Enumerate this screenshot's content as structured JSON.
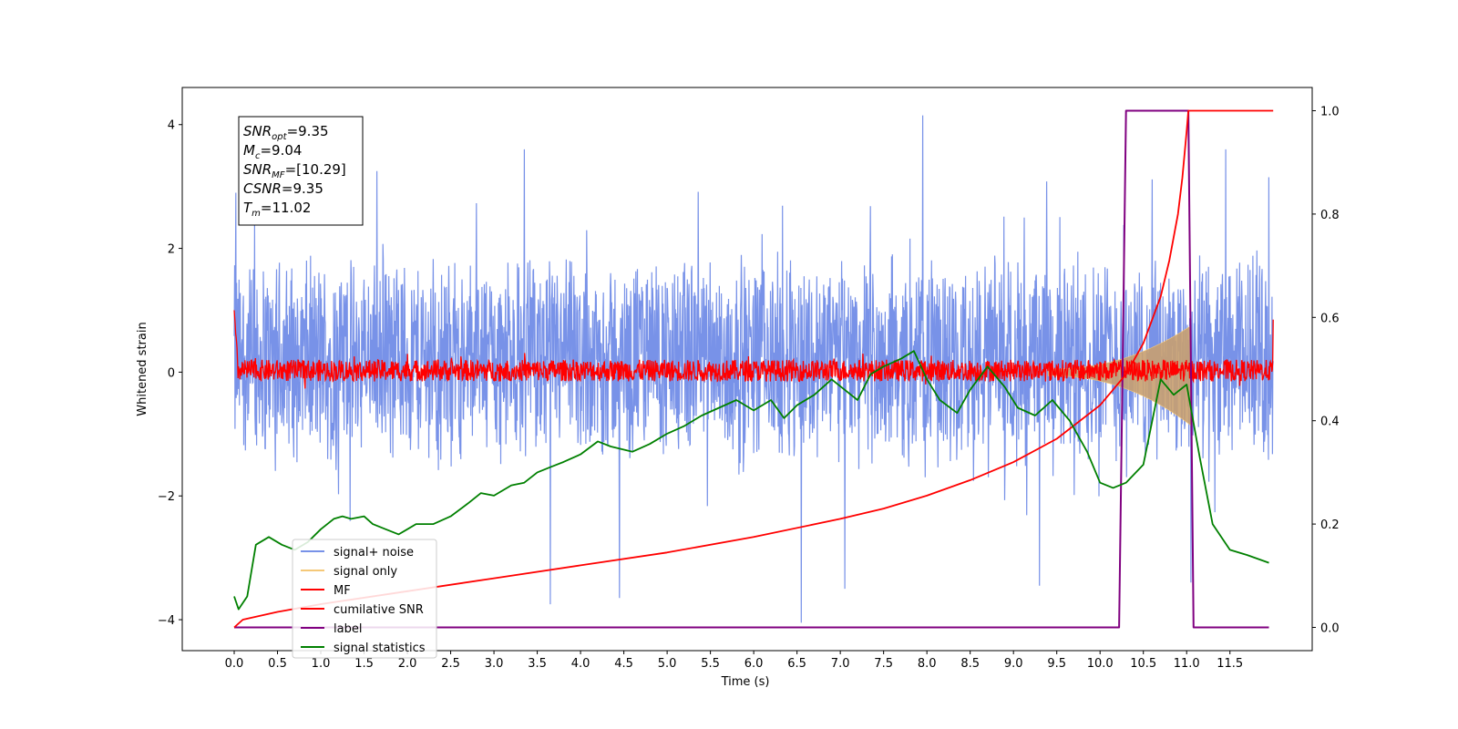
{
  "chart_data": {
    "type": "line",
    "title": "",
    "xlabel": "Time (s)",
    "ylabel": "Whitened strain",
    "xlim": [
      -0.6,
      12.45
    ],
    "ylim": [
      -4.5,
      4.6
    ],
    "y2lim": [
      -0.045,
      1.045
    ],
    "x_ticks": [
      "0.0",
      "0.5",
      "1.0",
      "1.5",
      "2.0",
      "2.5",
      "3.0",
      "3.5",
      "4.0",
      "4.5",
      "5.0",
      "5.5",
      "6.0",
      "6.5",
      "7.0",
      "7.5",
      "8.0",
      "8.5",
      "9.0",
      "9.5",
      "10.0",
      "10.5",
      "11.0",
      "11.5"
    ],
    "y_ticks": [
      "−4",
      "−2",
      "0",
      "2",
      "4"
    ],
    "y2_ticks": [
      "0.0",
      "0.2",
      "0.4",
      "0.6",
      "0.8",
      "1.0"
    ],
    "grid": false,
    "legend_position": "lower-left",
    "annotation": {
      "lines": [
        {
          "sym": "SNR",
          "sub": "opt",
          "rest": "=9.35"
        },
        {
          "sym": "M",
          "sub": "c",
          "rest": "=9.04"
        },
        {
          "sym": "SNR",
          "sub": "MF",
          "rest": "=[10.29]"
        },
        {
          "sym": "CSNR",
          "sub": "",
          "rest": "=9.35"
        },
        {
          "sym": "T",
          "sub": "m",
          "rest": "=11.02"
        }
      ]
    },
    "series": [
      {
        "name": "signal+ noise",
        "color": "#7892e8",
        "axis": "left",
        "kind": "noise",
        "x_range": [
          0.0,
          12.0
        ],
        "typical_range": [
          -1.6,
          2.0
        ],
        "extremes": [
          {
            "x": 0.02,
            "y": 2.9
          },
          {
            "x": 1.65,
            "y": 3.25
          },
          {
            "x": 3.35,
            "y": 3.6
          },
          {
            "x": 7.95,
            "y": 4.15
          },
          {
            "x": 11.45,
            "y": 3.6
          },
          {
            "x": 11.95,
            "y": 3.15
          },
          {
            "x": 3.65,
            "y": -3.75
          },
          {
            "x": 4.45,
            "y": -3.65
          },
          {
            "x": 6.55,
            "y": -4.05
          },
          {
            "x": 7.05,
            "y": -3.5
          },
          {
            "x": 9.3,
            "y": -3.45
          },
          {
            "x": 11.05,
            "y": -3.4
          }
        ]
      },
      {
        "name": "signal only",
        "color": "#f5c878",
        "axis": "left",
        "kind": "chirp",
        "x_range": [
          9.4,
          11.05
        ],
        "amplitude_start": 0.05,
        "amplitude_end": 0.75
      },
      {
        "name": "MF",
        "color": "#ff0000",
        "axis": "left",
        "kind": "noise",
        "x_range": [
          0.0,
          12.0
        ],
        "typical_range": [
          -0.15,
          0.2
        ],
        "start_value": 1.0,
        "end_value": 0.85
      },
      {
        "name": "cumilative SNR",
        "color": "#ff0000",
        "axis": "right",
        "x": [
          0.0,
          0.1,
          0.5,
          1.0,
          2.0,
          3.0,
          4.0,
          5.0,
          6.0,
          7.0,
          7.5,
          8.0,
          8.5,
          9.0,
          9.5,
          10.0,
          10.3,
          10.5,
          10.7,
          10.8,
          10.9,
          10.95,
          11.0,
          11.02,
          12.0
        ],
        "y": [
          0.0,
          0.015,
          0.03,
          0.045,
          0.07,
          0.095,
          0.12,
          0.145,
          0.175,
          0.21,
          0.23,
          0.255,
          0.285,
          0.32,
          0.365,
          0.43,
          0.49,
          0.55,
          0.64,
          0.71,
          0.8,
          0.87,
          0.96,
          1.0,
          1.0
        ]
      },
      {
        "name": "label",
        "color": "#800080",
        "axis": "right",
        "x": [
          0.0,
          10.22,
          10.3,
          11.02,
          11.08,
          11.95
        ],
        "y": [
          0.0,
          0.0,
          1.0,
          1.0,
          0.0,
          0.0
        ]
      },
      {
        "name": "signal statistics",
        "color": "#008000",
        "axis": "right",
        "x": [
          0.0,
          0.05,
          0.15,
          0.25,
          0.4,
          0.55,
          0.7,
          0.85,
          1.0,
          1.15,
          1.25,
          1.35,
          1.5,
          1.6,
          1.75,
          1.9,
          2.0,
          2.1,
          2.3,
          2.5,
          2.7,
          2.85,
          3.0,
          3.2,
          3.35,
          3.5,
          3.65,
          3.8,
          4.0,
          4.2,
          4.35,
          4.6,
          4.8,
          5.0,
          5.2,
          5.4,
          5.6,
          5.8,
          6.0,
          6.2,
          6.35,
          6.5,
          6.7,
          6.9,
          7.05,
          7.2,
          7.35,
          7.5,
          7.7,
          7.85,
          8.0,
          8.15,
          8.35,
          8.5,
          8.7,
          8.9,
          9.05,
          9.25,
          9.45,
          9.65,
          9.85,
          10.0,
          10.15,
          10.3,
          10.5,
          10.7,
          10.85,
          11.0,
          11.15,
          11.3,
          11.5,
          11.7,
          11.95
        ],
        "y": [
          0.06,
          0.035,
          0.06,
          0.16,
          0.175,
          0.16,
          0.15,
          0.165,
          0.19,
          0.21,
          0.215,
          0.21,
          0.215,
          0.2,
          0.19,
          0.18,
          0.19,
          0.2,
          0.2,
          0.215,
          0.24,
          0.26,
          0.255,
          0.275,
          0.28,
          0.3,
          0.31,
          0.32,
          0.335,
          0.36,
          0.35,
          0.34,
          0.355,
          0.375,
          0.39,
          0.41,
          0.425,
          0.44,
          0.42,
          0.44,
          0.405,
          0.43,
          0.45,
          0.48,
          0.46,
          0.44,
          0.49,
          0.505,
          0.52,
          0.535,
          0.48,
          0.44,
          0.415,
          0.46,
          0.505,
          0.465,
          0.425,
          0.41,
          0.44,
          0.4,
          0.34,
          0.28,
          0.27,
          0.28,
          0.315,
          0.48,
          0.45,
          0.47,
          0.33,
          0.2,
          0.15,
          0.14,
          0.125
        ]
      }
    ]
  }
}
